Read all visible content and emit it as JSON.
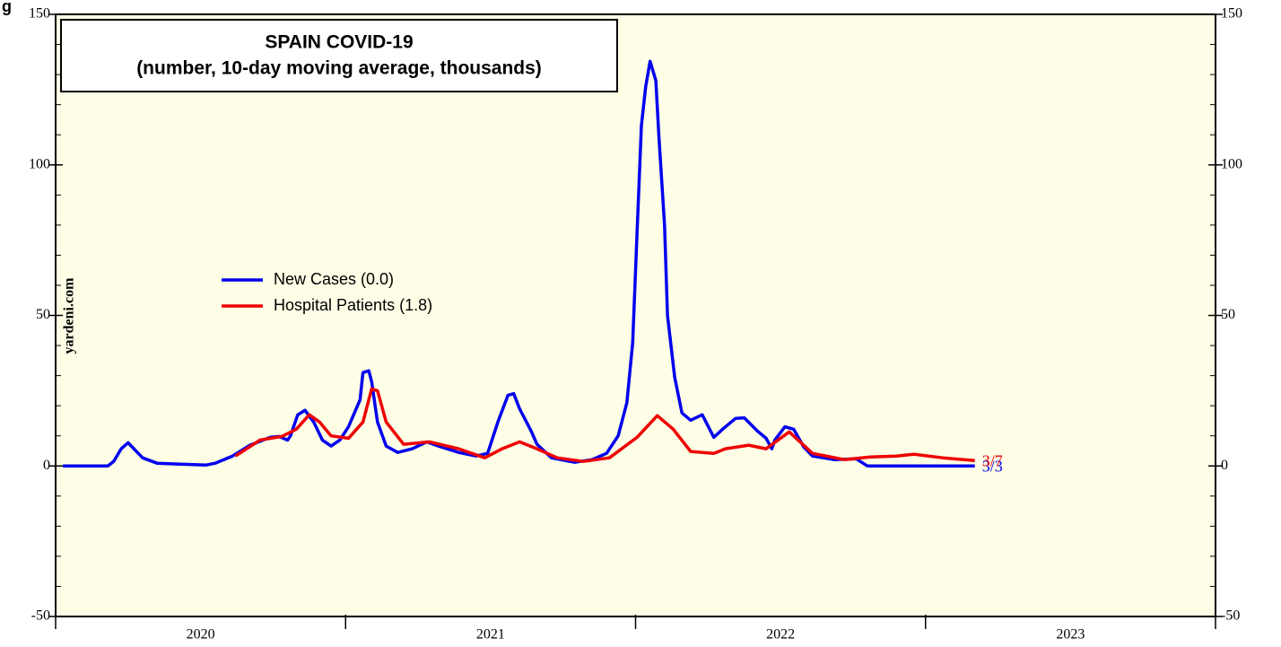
{
  "corner_text": "g",
  "chart_data": {
    "type": "line",
    "title": "SPAIN COVID-19",
    "subtitle": "(number, 10-day moving average, thousands)",
    "watermark": "yardeni.com",
    "background": "#fefee6",
    "xlim": [
      2020,
      2024
    ],
    "xticks": [
      {
        "value": 2020.5,
        "label": "2020"
      },
      {
        "value": 2021.5,
        "label": "2021"
      },
      {
        "value": 2022.5,
        "label": "2022"
      },
      {
        "value": 2023.5,
        "label": "2023"
      }
    ],
    "ylim": [
      -50,
      150
    ],
    "yticks": [
      -50,
      0,
      50,
      100,
      150
    ],
    "yminor": [
      -40,
      -30,
      -20,
      -10,
      10,
      20,
      30,
      40,
      60,
      70,
      80,
      90,
      110,
      120,
      130,
      140
    ],
    "right_axis": true,
    "legend": "upper-left",
    "series": [
      {
        "name": "New Cases (0.0)",
        "color": "#0000ee",
        "end_label": "3/3",
        "x": [
          2020.025,
          2020.18,
          2020.2,
          2020.226,
          2020.25,
          2020.27,
          2020.3,
          2020.35,
          2020.43,
          2020.52,
          2020.55,
          2020.61,
          2020.67,
          2020.74,
          2020.77,
          2020.8,
          2020.81,
          2020.835,
          2020.86,
          2020.89,
          2020.92,
          2020.95,
          2020.98,
          2021.01,
          2021.05,
          2021.06,
          2021.08,
          2021.09,
          2021.11,
          2021.14,
          2021.18,
          2021.23,
          2021.28,
          2021.32,
          2021.39,
          2021.45,
          2021.49,
          2021.525,
          2021.56,
          2021.58,
          2021.6,
          2021.64,
          2021.66,
          2021.71,
          2021.79,
          2021.85,
          2021.9,
          2021.94,
          2021.97,
          2021.99,
          2022.005,
          2022.02,
          2022.035,
          2022.05,
          2022.07,
          2022.08,
          2022.1,
          2022.11,
          2022.135,
          2022.16,
          2022.19,
          2022.23,
          2022.27,
          2022.3,
          2022.345,
          2022.375,
          2022.42,
          2022.45,
          2022.47,
          2022.48,
          2022.515,
          2022.545,
          2022.58,
          2022.61,
          2022.685,
          2022.76,
          2022.8,
          2023.17
        ],
        "values": [
          0,
          0,
          1.5,
          5.7,
          7.7,
          5.7,
          2.7,
          0.9,
          0.6,
          0.3,
          0.9,
          3.3,
          6.9,
          9.5,
          9.8,
          8.6,
          10,
          17,
          18.5,
          14.6,
          8.6,
          6.6,
          8.6,
          13,
          22,
          31,
          31.6,
          28,
          14.6,
          6.6,
          4.5,
          5.7,
          8,
          6.6,
          4.5,
          3.3,
          4.2,
          14.6,
          23.5,
          24,
          19,
          11.6,
          7.2,
          2.7,
          1.2,
          2.1,
          4.2,
          10,
          21,
          41,
          77,
          113,
          126,
          134.4,
          128,
          110,
          80,
          50,
          29.5,
          17.6,
          15.2,
          17,
          9.5,
          12.2,
          15.8,
          16,
          11.6,
          9.2,
          5.7,
          8.6,
          13,
          12.2,
          6.3,
          3.3,
          2.1,
          2.4,
          0,
          0
        ]
      },
      {
        "name": "Hospital Patients (1.8)",
        "color": "#ee0000",
        "end_label": "3/7",
        "x": [
          2020.62,
          2020.705,
          2020.78,
          2020.83,
          2020.875,
          2020.91,
          2020.95,
          2021.01,
          2021.06,
          2021.09,
          2021.11,
          2021.14,
          2021.2,
          2021.29,
          2021.39,
          2021.48,
          2021.54,
          2021.6,
          2021.66,
          2021.73,
          2021.82,
          2021.91,
          2022.005,
          2022.075,
          2022.13,
          2022.19,
          2022.27,
          2022.31,
          2022.39,
          2022.45,
          2022.53,
          2022.61,
          2022.72,
          2022.81,
          2022.9,
          2022.96,
          2023.06,
          2023.17
        ],
        "values": [
          3.3,
          8.6,
          9.8,
          12.2,
          17,
          14.6,
          10,
          9.2,
          14.6,
          25.6,
          25,
          14.6,
          7.2,
          8,
          5.7,
          2.7,
          5.7,
          8,
          5.7,
          2.7,
          1.5,
          2.7,
          9.5,
          16.7,
          12.2,
          4.8,
          4.2,
          5.7,
          6.9,
          5.7,
          11.3,
          4.2,
          2.1,
          3,
          3.3,
          3.9,
          2.7,
          1.8
        ]
      }
    ]
  }
}
